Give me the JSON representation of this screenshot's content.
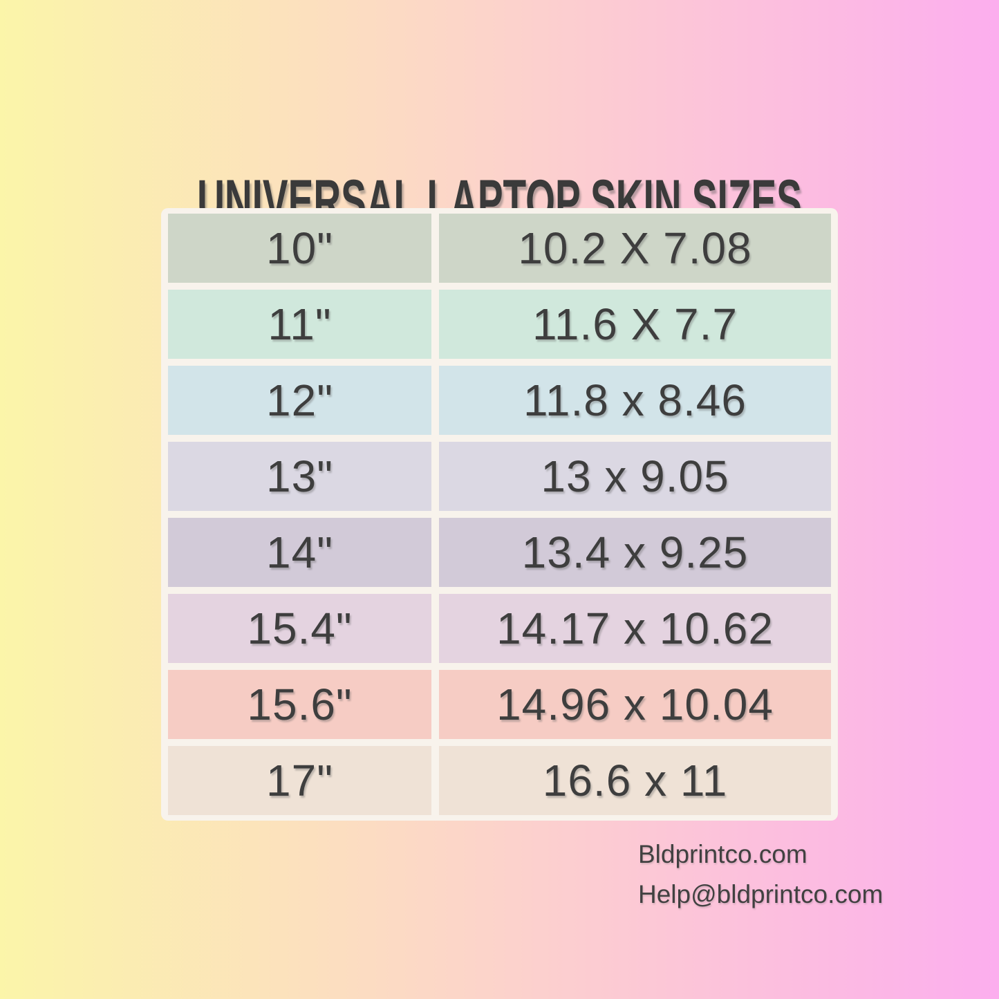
{
  "page": {
    "title": "UNIVERSAL LAPTOP SKIN SIZES"
  },
  "table": {
    "rows": [
      {
        "size": "10\"",
        "dimensions": "10.2 X 7.08",
        "color": "#CED6C8"
      },
      {
        "size": "11\"",
        "dimensions": "11.6 X 7.7",
        "color": "#D0E8DC"
      },
      {
        "size": "12\"",
        "dimensions": "11.8 x 8.46",
        "color": "#D2E4E9"
      },
      {
        "size": "13\"",
        "dimensions": "13 x 9.05",
        "color": "#DBD8E3"
      },
      {
        "size": "14\"",
        "dimensions": "13.4 x 9.25",
        "color": "#D2CAD8"
      },
      {
        "size": "15.4\"",
        "dimensions": "14.17 x 10.62",
        "color": "#E4D3E0"
      },
      {
        "size": "15.6\"",
        "dimensions": "14.96 x 10.04",
        "color": "#F6CCC4"
      },
      {
        "size": "17\"",
        "dimensions": "16.6 x 11",
        "color": "#EFE2D6"
      }
    ]
  },
  "footer": {
    "website": "Bldprintco.com",
    "email": "Help@bldprintco.com"
  },
  "colors": {
    "background_left": "#FBF5A9",
    "background_middle": "#FCD3CB",
    "background_right": "#FCAEEE",
    "frame": "#F8F3EC",
    "text": "#3E3E3E",
    "title_text": "#3A3A3A"
  },
  "chart_data": {
    "type": "table",
    "title": "UNIVERSAL LAPTOP SKIN SIZES",
    "rows": [
      [
        "10\"",
        "10.2 X 7.08"
      ],
      [
        "11\"",
        "11.6 X 7.7"
      ],
      [
        "12\"",
        "11.8 x 8.46"
      ],
      [
        "13\"",
        "13 x 9.05"
      ],
      [
        "14\"",
        "13.4 x 9.25"
      ],
      [
        "15.4\"",
        "14.17 x 10.62"
      ],
      [
        "15.6\"",
        "14.96 x 10.04"
      ],
      [
        "17\"",
        "16.6 x 11"
      ]
    ],
    "layout_hints": {
      "columns_meaning": "laptop screen size | skin dimensions in inches",
      "header_row": false,
      "row_colors": "pastel, one tint per row"
    }
  }
}
